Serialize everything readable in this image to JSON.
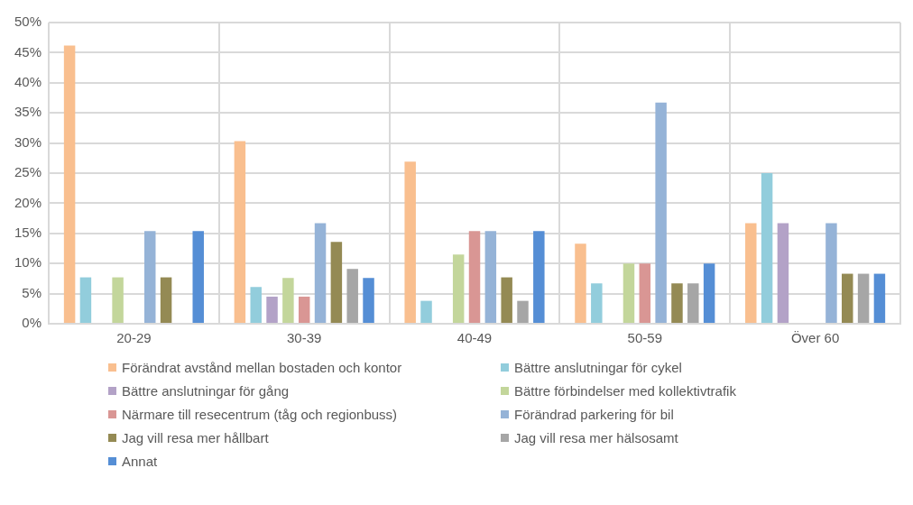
{
  "chart_data": {
    "type": "bar",
    "categories": [
      "20-29",
      "30-39",
      "40-49",
      "50-59",
      "Över 60"
    ],
    "series": [
      {
        "name": "Förändrat avstånd mellan bostaden och kontor",
        "color": "#f9bf8f",
        "values": [
          46.2,
          30.3,
          26.9,
          13.3,
          16.7
        ]
      },
      {
        "name": "Bättre anslutningar för cykel",
        "color": "#92cddc",
        "values": [
          7.7,
          6.1,
          3.8,
          6.7,
          25
        ]
      },
      {
        "name": "Bättre anslutningar för gång",
        "color": "#b3a2c7",
        "values": [
          0,
          4.5,
          0,
          0,
          16.7
        ]
      },
      {
        "name": "Bättre förbindelser med kollektivtrafik",
        "color": "#c3d69b",
        "values": [
          7.7,
          7.6,
          11.5,
          10,
          0
        ]
      },
      {
        "name": "Närmare till resecentrum (tåg och regionbuss)",
        "color": "#d99694",
        "values": [
          0,
          4.5,
          15.4,
          10,
          0
        ]
      },
      {
        "name": "Förändrad parkering för bil",
        "color": "#95b3d7",
        "values": [
          15.4,
          16.7,
          15.4,
          36.7,
          16.7
        ]
      },
      {
        "name": "Jag vill resa mer hållbart",
        "color": "#948a54",
        "values": [
          7.7,
          13.6,
          7.7,
          6.7,
          8.3
        ]
      },
      {
        "name": "Jag vill resa mer hälsosamt",
        "color": "#a6a6a6",
        "values": [
          0,
          9.1,
          3.8,
          6.7,
          8.3
        ]
      },
      {
        "name": "Annat",
        "color": "#558ed5",
        "values": [
          15.4,
          7.6,
          15.4,
          10,
          8.3
        ]
      }
    ],
    "ylim": [
      0,
      50
    ],
    "yticks": [
      {
        "value": 0,
        "label": "0%"
      },
      {
        "value": 5,
        "label": "5%"
      },
      {
        "value": 10,
        "label": "10%"
      },
      {
        "value": 15,
        "label": "15%"
      },
      {
        "value": 20,
        "label": "20%"
      },
      {
        "value": 25,
        "label": "25%"
      },
      {
        "value": 30,
        "label": "30%"
      },
      {
        "value": 35,
        "label": "35%"
      },
      {
        "value": 40,
        "label": "40%"
      },
      {
        "value": 45,
        "label": "45%"
      },
      {
        "value": 50,
        "label": "50%"
      }
    ],
    "grid": true,
    "legend": "bottom"
  }
}
